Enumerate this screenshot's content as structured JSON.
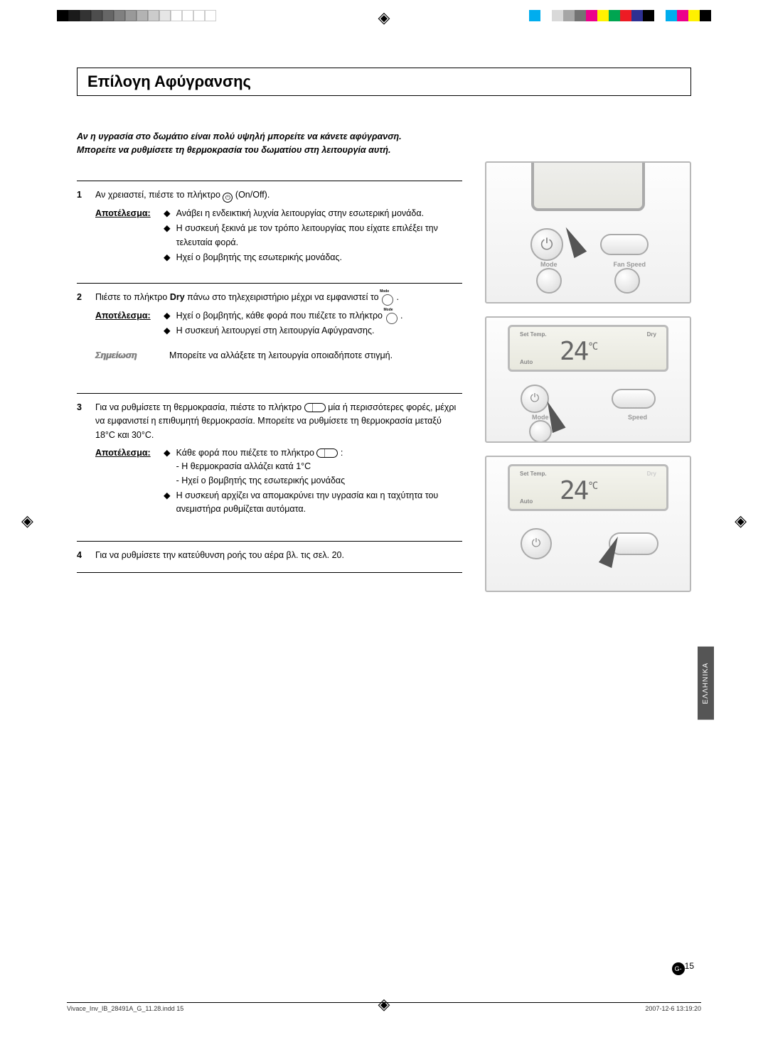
{
  "colorbar_gray": [
    "#000000",
    "#1a1a1a",
    "#333333",
    "#4d4d4d",
    "#666666",
    "#808080",
    "#999999",
    "#b3b3b3",
    "#cccccc",
    "#e6e6e6",
    "#ffffff",
    "#ffffff",
    "#ffffff",
    "#ffffff"
  ],
  "colorbar_color": [
    "#00adee",
    "#ffffff",
    "#d9d9d9",
    "#a6a6a6",
    "#737373",
    "#ec008b",
    "#fff100",
    "#00a551",
    "#ed1b24",
    "#2e3092",
    "#000000",
    "#ffffff",
    "#00adee",
    "#ec008b",
    "#fff100",
    "#000000"
  ],
  "title": "Επίλογη Αφύγρανσης",
  "intro_l1": "Αν η υγρασία στο δωμάτιο είναι πολύ υψηλή μπορείτε να κάνετε αφύγρανση.",
  "intro_l2": "Μπορείτε να ρυθμίσετε τη θερμοκρασία του δωματίου στη λειτουργία αυτή.",
  "result_label": "Αποτέλεσμα:",
  "note_label": "Σημείωση",
  "step1": {
    "num": "1",
    "text_a": "Αν χρειαστεί, πιέστε το πλήκτρο ",
    "text_b": " (On/Off).",
    "bullets": [
      "Ανάβει η ενδεικτική λυχνία λειτουργίας στην εσωτερική μονάδα.",
      "Η συσκευή ξεκινά με τον τρόπο λειτουργίας που είχατε επιλέξει την τελευταία φορά.",
      "Ηχεί ο βομβητής της εσωτερικής μονάδας."
    ]
  },
  "step2": {
    "num": "2",
    "text_a": "Πιέστε το πλήκτρο ",
    "text_bold": "Dry",
    "text_b": " πάνω στο τηλεχειριστήριο μέχρι να εμφανιστεί το ",
    "text_c": " .",
    "bullets": [
      "Ηχεί ο βομβητής, κάθε φορά που πιέζετε το πλήκτρο",
      "Η συσκευή λειτουργεί στη λειτουργία Αφύγρανσης."
    ],
    "note": "Μπορείτε να αλλάξετε τη λειτουργία οποιαδήποτε στιγμή."
  },
  "step3": {
    "num": "3",
    "text_a": "Για να ρυθμίσετε τη θερμοκρασία, πιέστε το πλήκτρο ",
    "text_b": " μία ή περισσότερες φορές, μέχρι να εμφανιστεί η επιθυμητή θερμοκρασία. Μπορείτε να ρυθμίσετε τη θερμοκρασία μεταξύ 18°C και 30°C.",
    "r1_a": "Κάθε φορά που πιέζετε το πλήκτρο ",
    "r1_b": " :",
    "r1_sub1": "- Η θερμοκρασία αλλάζει κατά 1°C",
    "r1_sub2": "- Ηχεί ο βομβητής της εσωτερικής μονάδας",
    "r2": "Η συσκευή αρχίζει να απομακρύνει την υγρασία και η ταχύτητα του ανεμιστήρα ρυθμίζεται αυτόματα."
  },
  "step4": {
    "num": "4",
    "text": "Για να ρυθμίσετε την κατεύθυνση ροής του αέρα βλ. τις σελ. 20."
  },
  "remote": {
    "mode": "Mode",
    "fanspeed": "Fan Speed",
    "speed": "Speed",
    "settemp": "Set Temp.",
    "dry": "Dry",
    "auto": "Auto",
    "temp": "24",
    "unit": "°C"
  },
  "lang_tab": "ΕΛΛΗΝΙΚΑ",
  "page_prefix": "G-",
  "page_num": "15",
  "footer_left": "Vivace_Inv_IB_28491A_G_11.28.indd   15",
  "footer_right": "2007-12-6   13:19:20"
}
